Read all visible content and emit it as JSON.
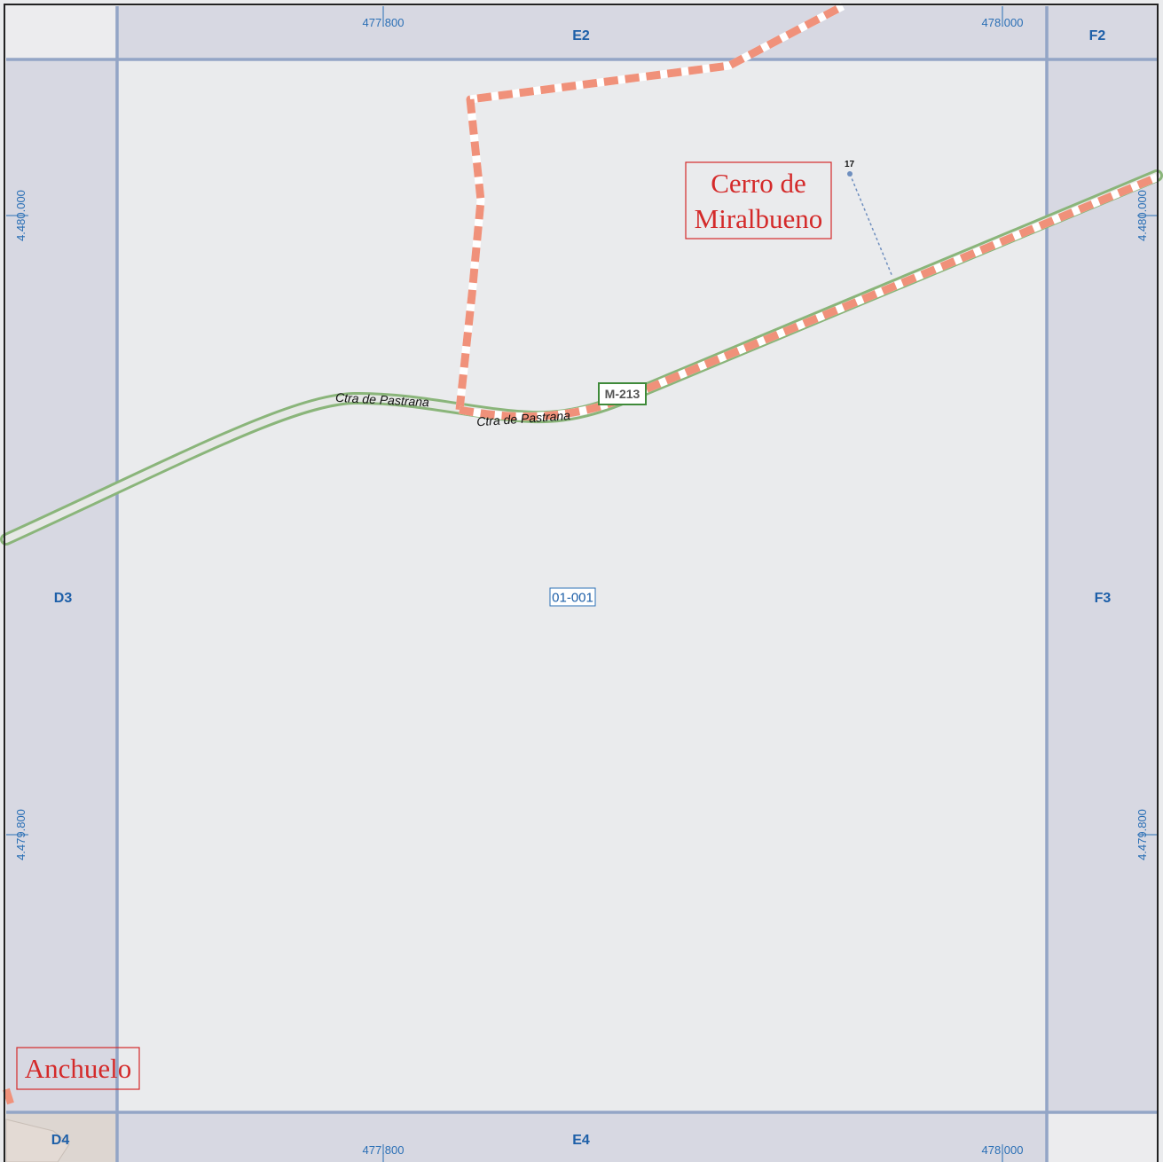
{
  "coords": {
    "top_left": "477.800",
    "top_right": "478.000",
    "bottom_left": "477.800",
    "bottom_right": "478.000",
    "left_upper": "4.480.000",
    "left_lower": "4.479.800",
    "right_upper": "4.480.000",
    "right_lower": "4.479.800"
  },
  "sheets": {
    "e2": "E2",
    "f2": "F2",
    "d3": "D3",
    "f3": "F3",
    "d4": "D4",
    "e4": "E4"
  },
  "roads": {
    "name_1": "Ctra de Pastrana",
    "name_2": "Ctra de Pastrana",
    "shield": "M-213"
  },
  "places": {
    "cerro_line1": "Cerro de",
    "cerro_line2": "Miralbueno",
    "anchuelo": "Anchuelo"
  },
  "parcel": "01-001",
  "spot_height": "17",
  "colors": {
    "map_bg": "#eaebed",
    "margin_band": "#d7d8e2",
    "grid_line": "#93a5c6",
    "road_green": "#8ab57a",
    "path_salmon": "#f0917a",
    "place_red": "#d42a2a",
    "coord_blue": "#2a6fb5"
  }
}
